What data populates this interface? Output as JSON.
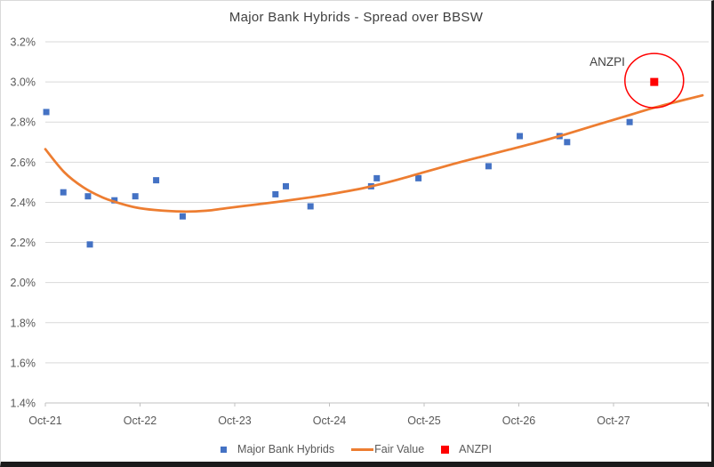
{
  "window": {
    "background": "#ffffff",
    "border_light": "#d9d9d9",
    "border_dark": "#1a1a1a"
  },
  "chart_data": {
    "type": "scatter",
    "title": "Major Bank Hybrids - Spread over BBSW",
    "xlabel": "",
    "ylabel": "",
    "x_axis": {
      "tick_labels": [
        "Oct-21",
        "Oct-22",
        "Oct-23",
        "Oct-24",
        "Oct-25",
        "Oct-26",
        "Oct-27"
      ],
      "tick_positions_years": [
        0,
        1,
        2,
        3,
        4,
        5,
        6
      ],
      "range_years": [
        0,
        7
      ]
    },
    "y_axis": {
      "tick_labels": [
        "1.4%",
        "1.6%",
        "1.8%",
        "2.0%",
        "2.2%",
        "2.4%",
        "2.6%",
        "2.8%",
        "3.0%",
        "3.2%"
      ],
      "tick_values": [
        1.4,
        1.6,
        1.8,
        2.0,
        2.2,
        2.4,
        2.6,
        2.8,
        3.0,
        3.2
      ],
      "range": [
        1.4,
        3.2
      ],
      "format": "percent"
    },
    "grid": true,
    "legend_position": "bottom",
    "series": [
      {
        "name": "Major Bank Hybrids",
        "type": "scatter",
        "marker": "square",
        "color": "#4472C4",
        "points_x_years_y_pct": [
          [
            0.01,
            2.85
          ],
          [
            0.19,
            2.45
          ],
          [
            0.45,
            2.43
          ],
          [
            0.47,
            2.19
          ],
          [
            0.73,
            2.41
          ],
          [
            0.95,
            2.43
          ],
          [
            1.17,
            2.51
          ],
          [
            1.45,
            2.33
          ],
          [
            2.43,
            2.44
          ],
          [
            2.54,
            2.48
          ],
          [
            2.8,
            2.38
          ],
          [
            3.44,
            2.48
          ],
          [
            3.5,
            2.52
          ],
          [
            3.94,
            2.52
          ],
          [
            4.68,
            2.58
          ],
          [
            5.01,
            2.73
          ],
          [
            5.43,
            2.73
          ],
          [
            5.51,
            2.7
          ],
          [
            6.17,
            2.8
          ]
        ]
      },
      {
        "name": "Fair Value",
        "type": "line",
        "color": "#ED7D31",
        "points_x_years_y_pct": [
          [
            0.0,
            2.665
          ],
          [
            0.2,
            2.55
          ],
          [
            0.4,
            2.475
          ],
          [
            0.6,
            2.425
          ],
          [
            0.75,
            2.4
          ],
          [
            0.95,
            2.375
          ],
          [
            1.15,
            2.362
          ],
          [
            1.45,
            2.354
          ],
          [
            1.7,
            2.358
          ],
          [
            1.9,
            2.37
          ],
          [
            2.2,
            2.388
          ],
          [
            2.5,
            2.405
          ],
          [
            2.8,
            2.425
          ],
          [
            3.1,
            2.448
          ],
          [
            3.4,
            2.475
          ],
          [
            3.7,
            2.51
          ],
          [
            4.0,
            2.55
          ],
          [
            4.3,
            2.59
          ],
          [
            4.6,
            2.627
          ],
          [
            4.9,
            2.663
          ],
          [
            5.2,
            2.7
          ],
          [
            5.5,
            2.74
          ],
          [
            5.8,
            2.783
          ],
          [
            6.1,
            2.825
          ],
          [
            6.4,
            2.868
          ],
          [
            6.7,
            2.905
          ],
          [
            6.94,
            2.933
          ]
        ]
      },
      {
        "name": "ANZPI",
        "type": "scatter",
        "marker": "square",
        "color": "#FF0000",
        "points_x_years_y_pct": [
          [
            6.43,
            3.0
          ]
        ]
      }
    ],
    "annotation": {
      "label": "ANZPI",
      "circle_color": "#FF0000"
    },
    "colors": {
      "gridline": "#d9d9d9",
      "axis_line": "#c0c0c0",
      "tick_text": "#595959",
      "title_text": "#404040"
    }
  }
}
